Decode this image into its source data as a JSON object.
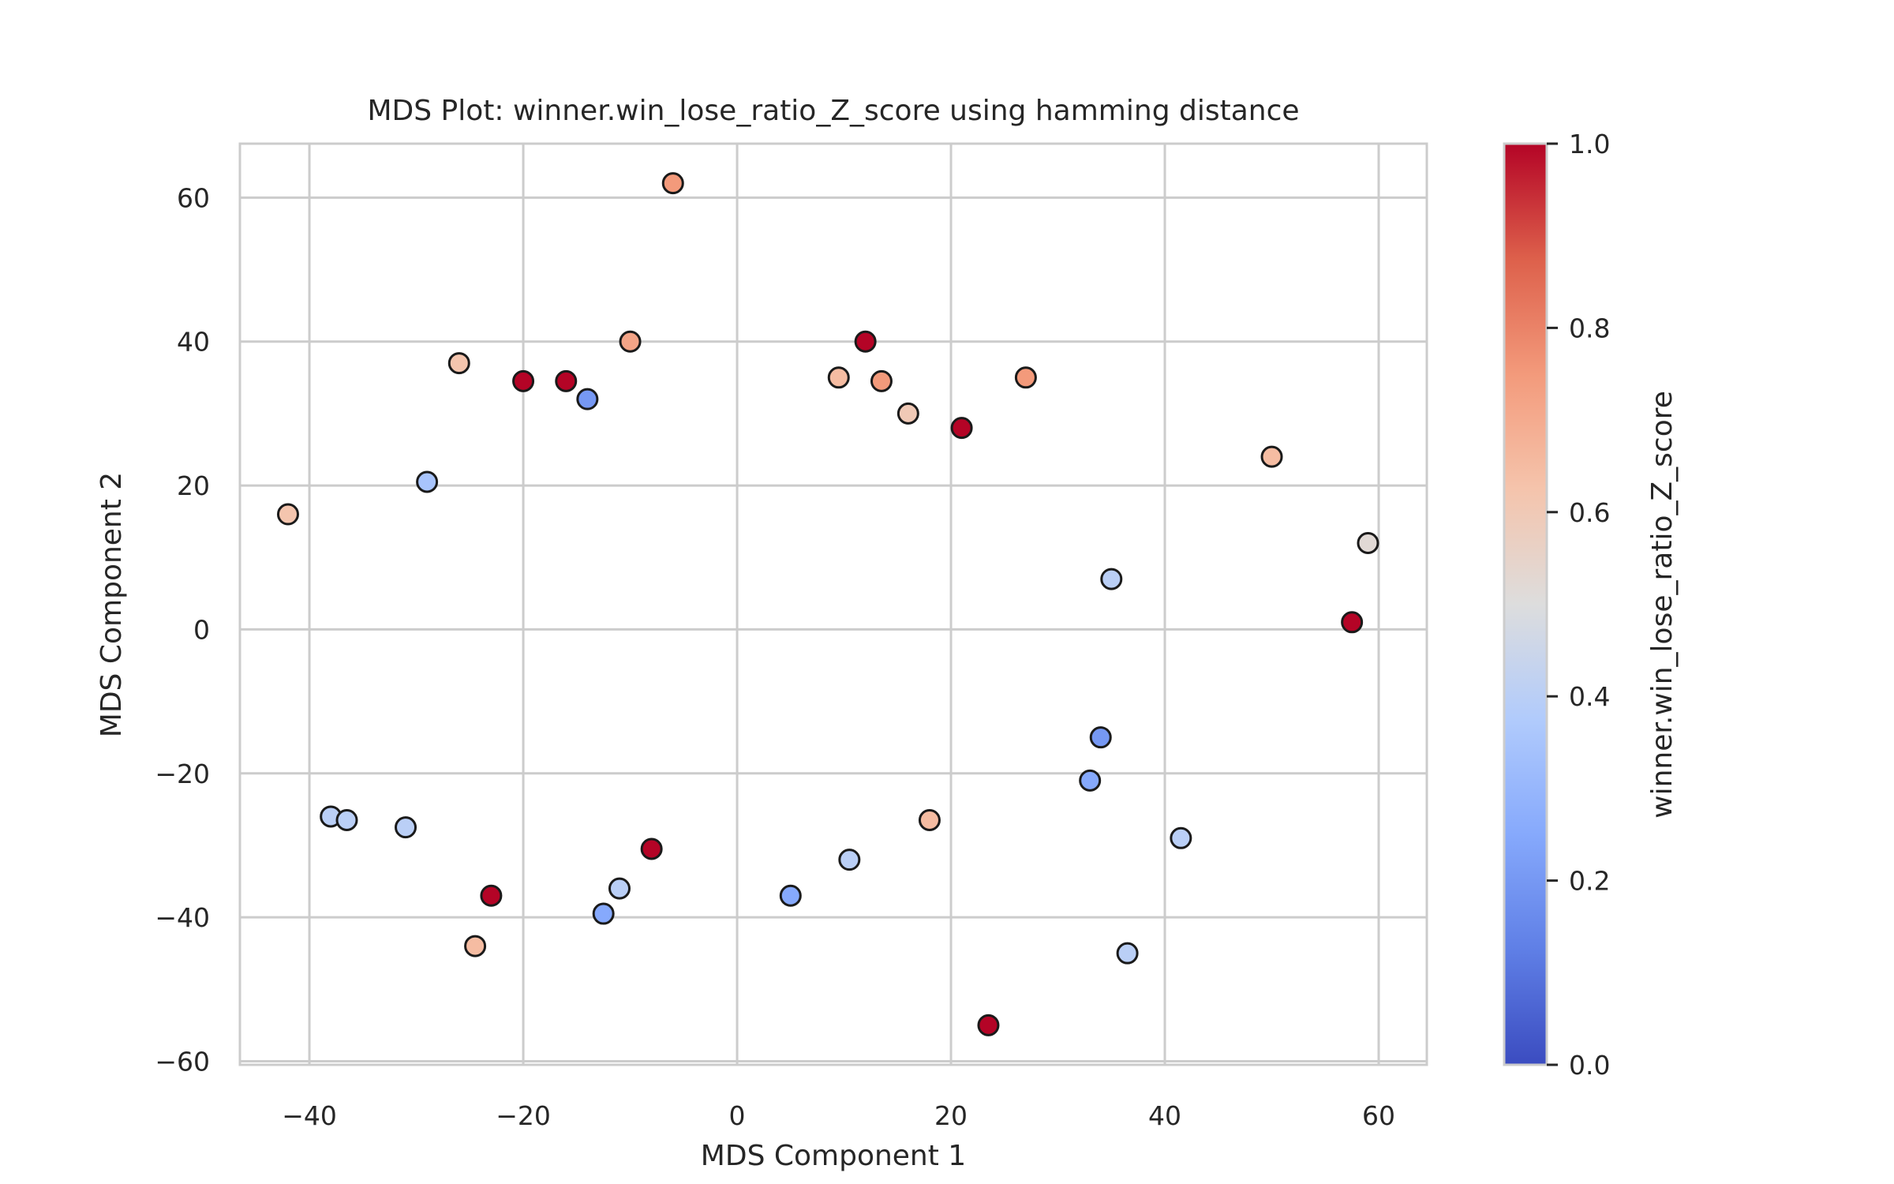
{
  "chart_data": {
    "type": "scatter",
    "title": "MDS Plot: winner.win_lose_ratio_Z_score using hamming distance",
    "xlabel": "MDS Component 1",
    "ylabel": "MDS Component 2",
    "xlim": [
      -46.5,
      64.5
    ],
    "ylim": [
      -60.5,
      67.5
    ],
    "xticks": [
      -40,
      -20,
      0,
      20,
      40,
      60
    ],
    "yticks": [
      -60,
      -40,
      -20,
      0,
      20,
      40,
      60
    ],
    "grid": true,
    "colormap": "coolwarm",
    "colorbar": {
      "label": "winner.win_lose_ratio_Z_score",
      "range": [
        0.0,
        1.0
      ],
      "ticks": [
        "0.0",
        "0.2",
        "0.4",
        "0.6",
        "0.8",
        "1.0"
      ],
      "low_color": "#3b4cc0",
      "mid_color": "#dddddd",
      "high_color": "#b40426"
    },
    "marker_edge_color": "#1a1a1a",
    "points": [
      {
        "x": -6,
        "y": 62,
        "c": 0.75
      },
      {
        "x": 12,
        "y": 40,
        "c": 1.0
      },
      {
        "x": -10,
        "y": 40,
        "c": 0.72
      },
      {
        "x": -26,
        "y": 37,
        "c": 0.62
      },
      {
        "x": 27,
        "y": 35,
        "c": 0.75
      },
      {
        "x": -42,
        "y": 16,
        "c": 0.62
      },
      {
        "x": 50,
        "y": 24,
        "c": 0.65
      },
      {
        "x": 59,
        "y": 12,
        "c": 0.52
      },
      {
        "x": 57.5,
        "y": 1,
        "c": 1.0
      },
      {
        "x": 41.5,
        "y": -29,
        "c": 0.4
      },
      {
        "x": 36.5,
        "y": -45,
        "c": 0.4
      },
      {
        "x": 23.5,
        "y": -55,
        "c": 1.0
      },
      {
        "x": -24.5,
        "y": -44,
        "c": 0.65
      },
      {
        "x": -12.5,
        "y": -39.5,
        "c": 0.25
      },
      {
        "x": -11,
        "y": -36,
        "c": 0.4
      },
      {
        "x": -38,
        "y": -26,
        "c": 0.4
      },
      {
        "x": -36.5,
        "y": -26.5,
        "c": 0.4
      },
      {
        "x": -29,
        "y": 20.5,
        "c": 0.35
      },
      {
        "x": -14,
        "y": 32,
        "c": 0.2
      },
      {
        "x": -20,
        "y": 34.5,
        "c": 1.0
      },
      {
        "x": -16,
        "y": 34.5,
        "c": 1.0
      },
      {
        "x": 9.5,
        "y": 35,
        "c": 0.65
      },
      {
        "x": 13.5,
        "y": 34.5,
        "c": 0.75
      },
      {
        "x": 16,
        "y": 30,
        "c": 0.6
      },
      {
        "x": 21,
        "y": 28,
        "c": 1.0
      },
      {
        "x": 35,
        "y": 7,
        "c": 0.4
      },
      {
        "x": 34,
        "y": -15,
        "c": 0.2
      },
      {
        "x": 33,
        "y": -21,
        "c": 0.25
      },
      {
        "x": 18,
        "y": -26.5,
        "c": 0.65
      },
      {
        "x": 10.5,
        "y": -32,
        "c": 0.4
      },
      {
        "x": -8,
        "y": -30.5,
        "c": 1.0
      },
      {
        "x": 5,
        "y": -37,
        "c": 0.25
      },
      {
        "x": -23,
        "y": -37,
        "c": 1.0
      },
      {
        "x": -31,
        "y": -27.5,
        "c": 0.4
      }
    ]
  }
}
